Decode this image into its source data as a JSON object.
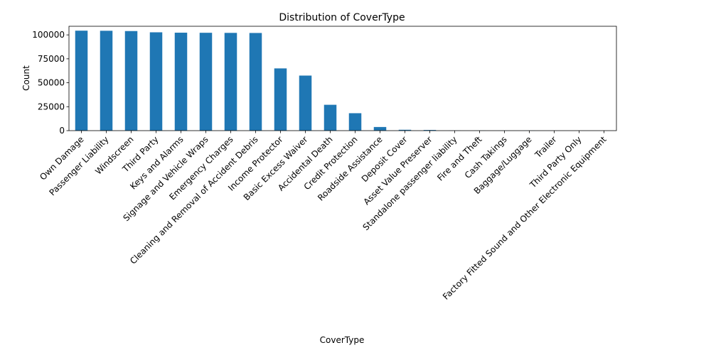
{
  "chart_data": {
    "type": "bar",
    "title": "Distribution of CoverType",
    "xlabel": "CoverType",
    "ylabel": "Count",
    "ylim": [
      0,
      109000
    ],
    "yticks": [
      0,
      25000,
      50000,
      75000,
      100000
    ],
    "ytick_labels": [
      "0",
      "25000",
      "50000",
      "75000",
      "100000"
    ],
    "grid": false,
    "bar_color": "#1f77b4",
    "categories": [
      "Own Damage",
      "Passenger Liability",
      "Windscreen",
      "Third Party",
      "Keys and Alarms",
      "Signage and Vehicle Wraps",
      "Emergency Charges",
      "Cleaning and Removal of Accident Debris",
      "Income Protector",
      "Basic Excess Waiver",
      "Accidental Death",
      "Credit Protection",
      "Roadside Assistance",
      "Deposit Cover",
      "Asset Value Preserver",
      "Standalone passenger liability",
      "Fire and Theft",
      "Cash Takings",
      "Baggage/Luggage",
      "Trailer",
      "Third Party Only",
      "Factory Fitted Sound and Other Electronic Equipment"
    ],
    "values": [
      104400,
      104300,
      104000,
      102700,
      102300,
      102200,
      102100,
      102000,
      65000,
      57500,
      27000,
      18200,
      3800,
      900,
      700,
      120,
      100,
      90,
      80,
      60,
      30,
      20
    ]
  }
}
